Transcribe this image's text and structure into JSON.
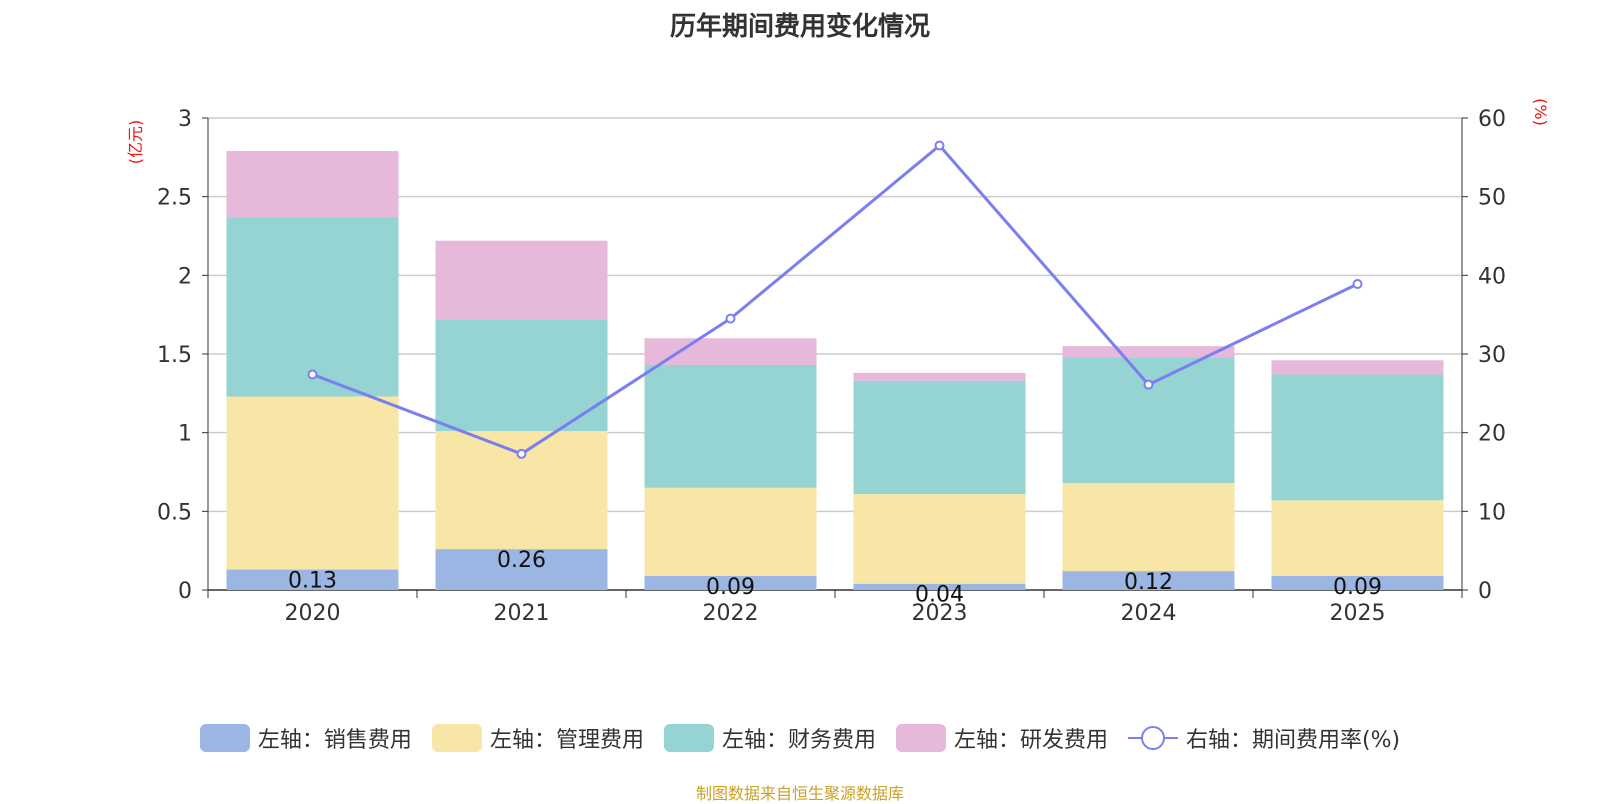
{
  "chart_data": {
    "type": "bar",
    "title": "历年期间费用变化情况",
    "categories": [
      "2020",
      "2021",
      "2022",
      "2023",
      "2024",
      "2025"
    ],
    "series": [
      {
        "name": "左轴：销售费用",
        "axis": "left",
        "stack": true,
        "color": "#9bb6e3",
        "values": [
          0.13,
          0.26,
          0.09,
          0.04,
          0.12,
          0.09
        ],
        "labels": [
          "0.13",
          "0.26",
          "0.09",
          "0.04",
          "0.12",
          "0.09"
        ]
      },
      {
        "name": "左轴：管理费用",
        "axis": "left",
        "stack": true,
        "color": "#f7e6a6",
        "values": [
          1.1,
          0.75,
          0.56,
          0.57,
          0.56,
          0.48
        ]
      },
      {
        "name": "左轴：财务费用",
        "axis": "left",
        "stack": true,
        "color": "#96d3d3",
        "values": [
          1.14,
          0.71,
          0.78,
          0.72,
          0.8,
          0.8
        ]
      },
      {
        "name": "左轴：研发费用",
        "axis": "left",
        "stack": true,
        "color": "#e6b9da",
        "values": [
          0.42,
          0.5,
          0.17,
          0.05,
          0.07,
          0.09
        ]
      },
      {
        "name": "右轴：期间费用率(%)",
        "axis": "right",
        "type": "line",
        "color": "#7b7ef0",
        "values": [
          27.4,
          17.3,
          34.5,
          56.5,
          26.1,
          38.9
        ]
      }
    ],
    "ylabel": "(亿元)",
    "ylim": [
      0,
      3
    ],
    "yticks": [
      "0",
      "0.5",
      "1",
      "1.5",
      "2",
      "2.5",
      "3"
    ],
    "y2label": "(%)",
    "y2lim": [
      0,
      60
    ],
    "y2ticks": [
      "0",
      "10",
      "20",
      "30",
      "40",
      "50",
      "60"
    ],
    "grid": true,
    "legend_position": "bottom"
  },
  "source": "制图数据来自恒生聚源数据库"
}
